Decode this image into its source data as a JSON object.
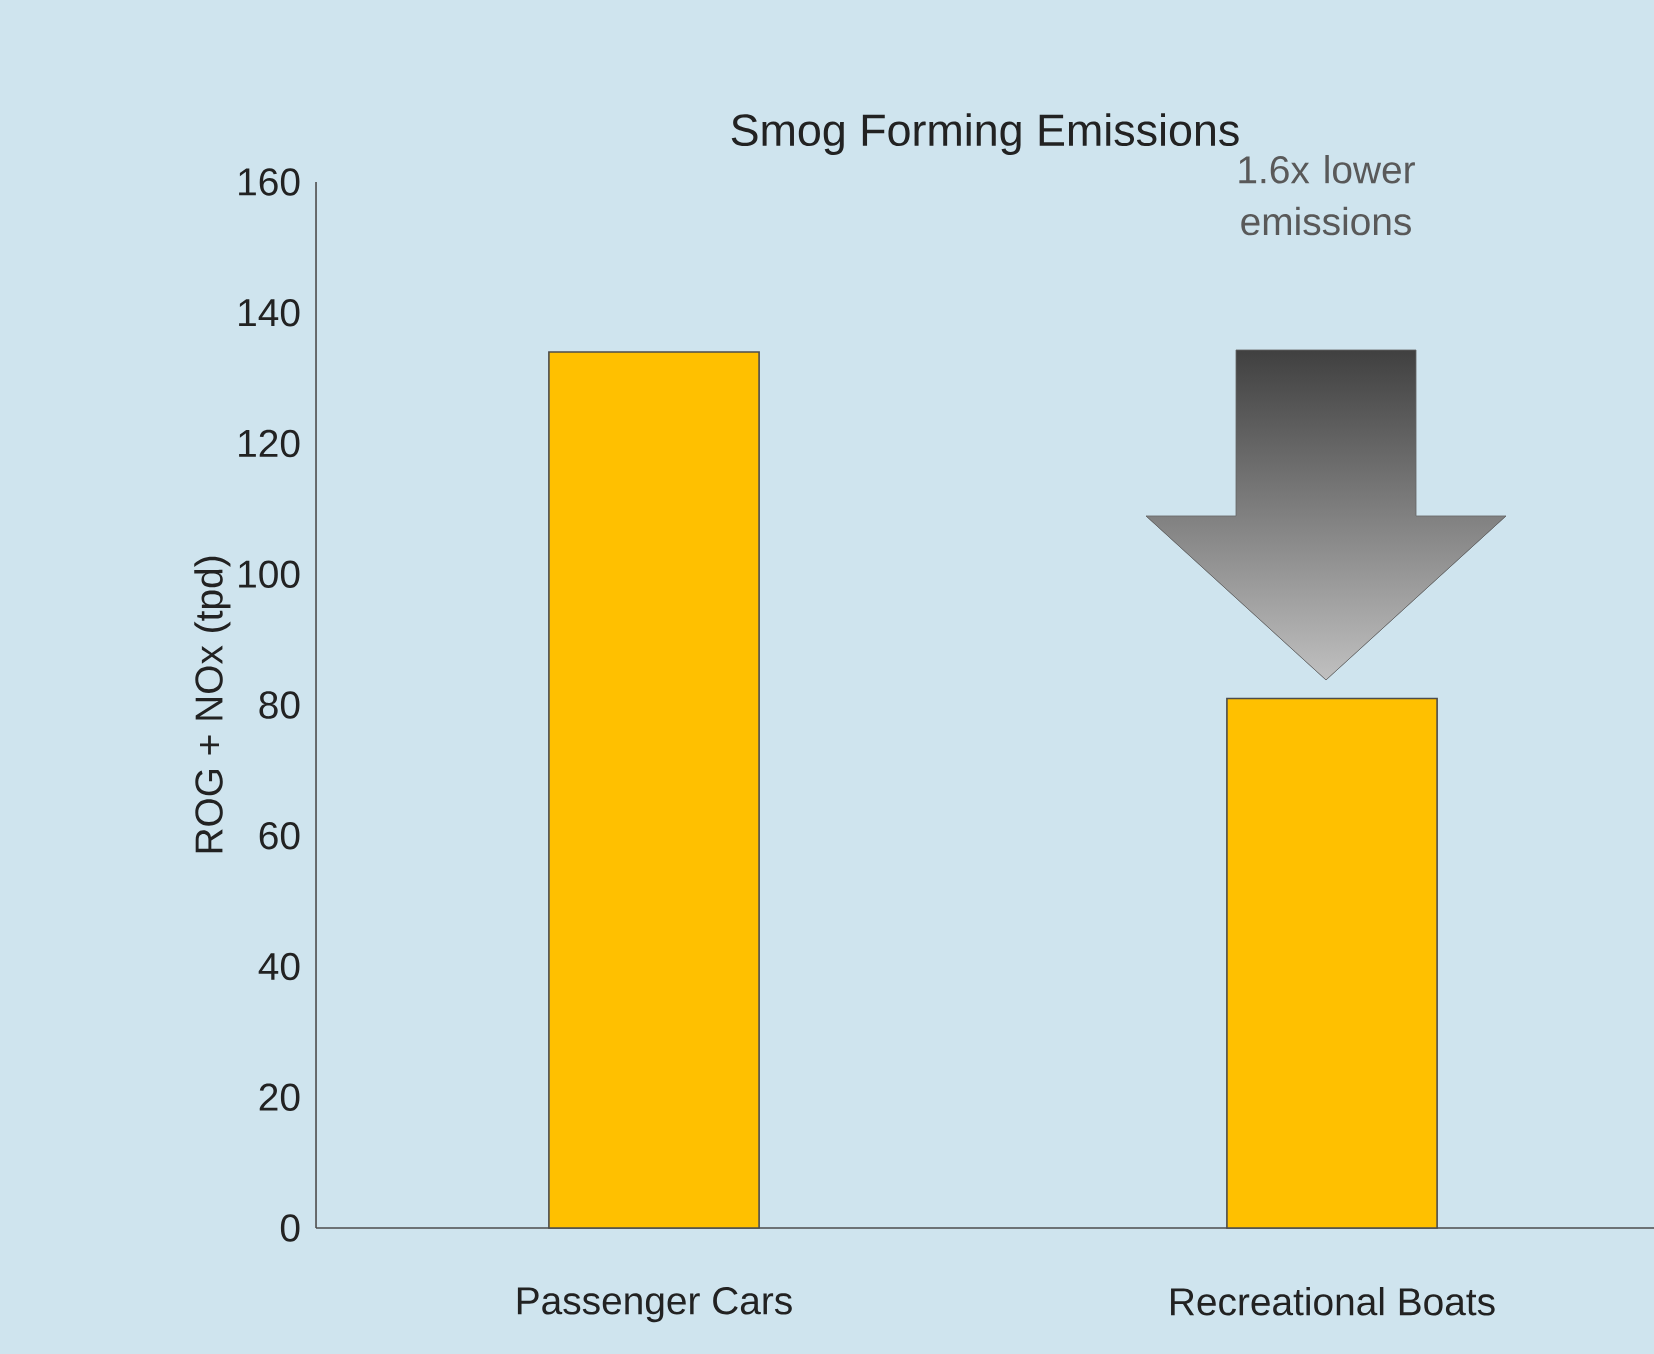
{
  "chart_data": {
    "type": "bar",
    "title": "Smog Forming Emissions",
    "ylabel": "ROG + NOx (tpd)",
    "categories": [
      "Passenger Cars",
      "Recreational Boats"
    ],
    "values": [
      134,
      81
    ],
    "color": "#ffc000",
    "ylim": [
      0,
      160
    ],
    "yticks": [
      0,
      20,
      40,
      60,
      80,
      100,
      120,
      140,
      160
    ],
    "grid": false,
    "annotations": [
      "1.6x lower emissions"
    ]
  }
}
